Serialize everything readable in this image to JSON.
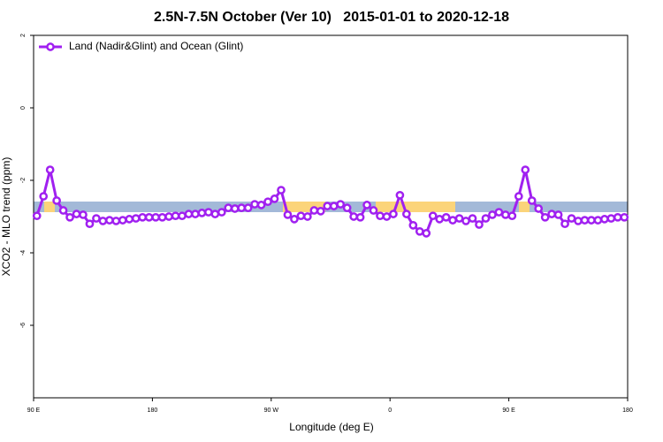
{
  "chart_data": {
    "type": "line",
    "title": "2.5N-7.5N October (Ver 10)   2015-01-01 to 2020-12-18",
    "xlabel": "Longitude (deg E)",
    "ylabel": "XCO2 - MLO trend (ppm)",
    "xlim": [
      90,
      540
    ],
    "xticks": [
      {
        "value": 90,
        "label": "90 E"
      },
      {
        "value": 180,
        "label": "180"
      },
      {
        "value": 270,
        "label": "90 W"
      },
      {
        "value": 360,
        "label": "0"
      },
      {
        "value": 450,
        "label": "90 E"
      },
      {
        "value": 540,
        "label": "180"
      }
    ],
    "ylim": [
      -8,
      2
    ],
    "yticks": [
      -6,
      -4,
      -2,
      0,
      2
    ],
    "legend": "top-left",
    "x": [
      92.5,
      97.5,
      102.5,
      107.5,
      112.5,
      117.5,
      122.5,
      127.5,
      132.5,
      137.5,
      142.5,
      147.5,
      152.5,
      157.5,
      162.5,
      167.5,
      172.5,
      177.5,
      182.5,
      187.5,
      192.5,
      197.5,
      202.5,
      207.5,
      212.5,
      217.5,
      222.5,
      227.5,
      232.5,
      237.5,
      242.5,
      247.5,
      252.5,
      257.5,
      262.5,
      267.5,
      272.5,
      277.5,
      282.5,
      287.5,
      292.5,
      297.5,
      302.5,
      307.5,
      312.5,
      317.5,
      322.5,
      327.5,
      332.5,
      337.5,
      342.5,
      347.5,
      352.5,
      357.5,
      362.5,
      367.5,
      372.5,
      377.5,
      382.5,
      387.5,
      392.5,
      397.5,
      402.5,
      407.5,
      412.5,
      417.5,
      422.5,
      427.5,
      432.5,
      437.5,
      442.5,
      447.5,
      452.5,
      457.5,
      462.5,
      467.5,
      472.5,
      477.5,
      482.5,
      487.5,
      492.5,
      497.5,
      502.5,
      507.5,
      512.5,
      517.5,
      522.5,
      527.5,
      532.5,
      537.5
    ],
    "series": [
      {
        "name": "Land (Nadir&Glint) and Ocean (Glint)",
        "color": "#a020f0",
        "values": [
          -2.98,
          -2.44,
          -1.71,
          -2.56,
          -2.83,
          -3.02,
          -2.93,
          -2.95,
          -3.2,
          -3.05,
          -3.12,
          -3.1,
          -3.12,
          -3.1,
          -3.07,
          -3.05,
          -3.02,
          -3.02,
          -3.02,
          -3.02,
          -3.0,
          -2.98,
          -2.98,
          -2.93,
          -2.93,
          -2.9,
          -2.88,
          -2.93,
          -2.88,
          -2.76,
          -2.78,
          -2.76,
          -2.76,
          -2.66,
          -2.68,
          -2.59,
          -2.51,
          -2.27,
          -2.95,
          -3.07,
          -2.98,
          -3.0,
          -2.83,
          -2.85,
          -2.71,
          -2.71,
          -2.66,
          -2.76,
          -3.0,
          -3.02,
          -2.68,
          -2.83,
          -2.98,
          -3.0,
          -2.93,
          -2.41,
          -2.93,
          -3.24,
          -3.41,
          -3.46,
          -2.98,
          -3.07,
          -3.02,
          -3.1,
          -3.05,
          -3.12,
          -3.05,
          -3.22,
          -3.05,
          -2.95,
          -2.88,
          -2.95,
          -2.98,
          -2.44,
          -1.71,
          -2.56,
          -2.78,
          -3.02,
          -2.93,
          -2.95,
          -3.2,
          -3.05,
          -3.12,
          -3.1,
          -3.1,
          -3.1,
          -3.07,
          -3.05,
          -3.02,
          -3.02
        ]
      }
    ]
  }
}
